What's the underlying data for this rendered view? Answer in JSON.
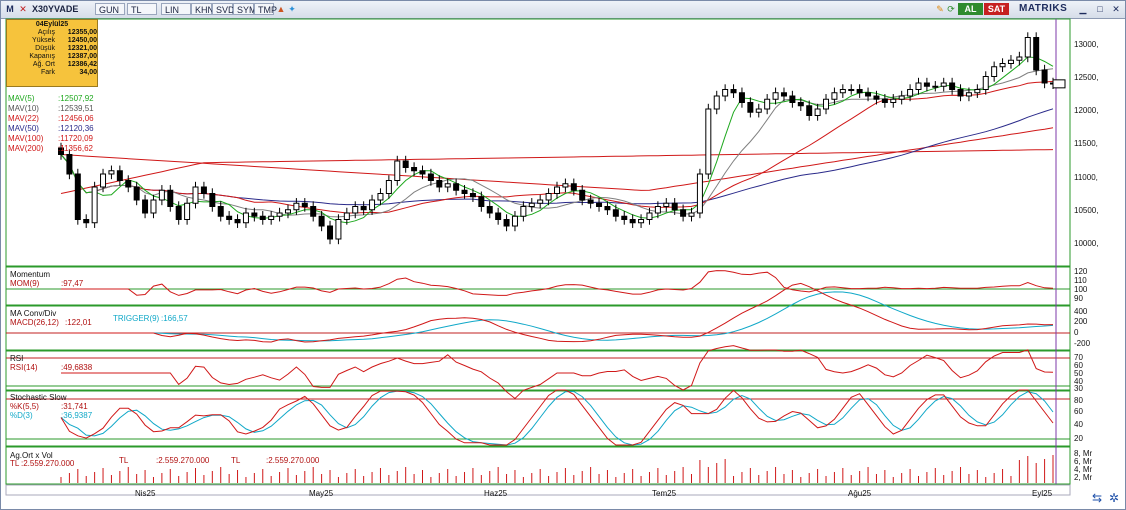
{
  "window": {
    "symbol": "X30YVADE",
    "toolbar": [
      "GUN",
      "TL",
      "LIN",
      "KHN",
      "SVD",
      "SYM",
      "TMP"
    ],
    "buy_label": "AL",
    "sell_label": "SAT",
    "brand": "MATRIKS",
    "menu_glyph": "M"
  },
  "info": {
    "date": "04Eylül25",
    "rows": [
      {
        "k": "Açılış",
        "v": "12355,00"
      },
      {
        "k": "Yüksek",
        "v": "12450,00"
      },
      {
        "k": "Düşük",
        "v": "12321,00"
      },
      {
        "k": "Kapanış",
        "v": "12387,00"
      },
      {
        "k": "Ağ. Ort",
        "v": "12386,42"
      },
      {
        "k": "Fark",
        "v": "34,00"
      }
    ]
  },
  "moving_averages": [
    {
      "name": "MAV(5)",
      "value": ":12507,92",
      "color": "#1ea81e"
    },
    {
      "name": "MAV(10)",
      "value": ":12539,51",
      "color": "#808080"
    },
    {
      "name": "MAV(22)",
      "value": ":12456,06",
      "color": "#d01818"
    },
    {
      "name": "MAV(50)",
      "value": ":12120,36",
      "color": "#2a2a8a"
    },
    {
      "name": "MAV(100)",
      "value": ":11720,09",
      "color": "#d01818"
    },
    {
      "name": "MAV(200)",
      "value": ":11356,62",
      "color": "#d01818"
    }
  ],
  "price_axis": [
    "13000,",
    "12500,",
    "12000,",
    "11500,",
    "11000,",
    "10500,",
    "10000,"
  ],
  "panels": {
    "momentum": {
      "title": "Momentum",
      "label": "MOM(9)",
      "value": ":97,47",
      "ticks": [
        "120",
        "110",
        "100",
        "90"
      ]
    },
    "macd": {
      "title": "MA Conv/Div",
      "label": "MACD(26,12)",
      "value": ":122,01",
      "trigger": "TRIGGER(9)",
      "trigger_value": ":166,57",
      "ticks": [
        "400",
        "200",
        "0",
        "-200"
      ]
    },
    "rsi": {
      "title": "RSI",
      "label": "RSI(14)",
      "value": ":49,6838",
      "ticks": [
        "70",
        "60",
        "50",
        "40",
        "30"
      ]
    },
    "stoch": {
      "title": "Stochastic Slow",
      "k_label": "%K(5,5)",
      "k_value": ":31,741",
      "d_label": "%D(3)",
      "d_value": ":36,9387",
      "ticks": [
        "80",
        "60",
        "40",
        "20"
      ]
    },
    "volume": {
      "title": "Ag.Ort x Vol",
      "tl1": "TL",
      "v1": ":2.559.270.000",
      "tl2": "TL",
      "v2": ":2.559.270.000",
      "tl3": "TL",
      "v3": ":2.559.270.000",
      "ticks": [
        "8, Mr",
        "6, Mr",
        "4, Mr",
        "2, Mr"
      ]
    }
  },
  "dates": [
    "Nis25",
    "May25",
    "Haz25",
    "Tem25",
    "Ağu25",
    "Eyl25"
  ],
  "colors": {
    "up": "#ffffff",
    "down": "#000000",
    "grid": "#2b9a2b",
    "accent": "#7d3aa8"
  },
  "chart_data": {
    "type": "candlestick",
    "series_note": "",
    "closes": [
      11300,
      11000,
      10300,
      10250,
      10800,
      11000,
      11050,
      10900,
      10800,
      10600,
      10400,
      10600,
      10750,
      10500,
      10300,
      10550,
      10800,
      10700,
      10500,
      10350,
      10300,
      10250,
      10400,
      10350,
      10300,
      10350,
      10400,
      10450,
      10550,
      10500,
      10350,
      10200,
      10000,
      10300,
      10400,
      10500,
      10450,
      10600,
      10700,
      10900,
      11200,
      11100,
      11050,
      11000,
      10900,
      10800,
      10850,
      10750,
      10700,
      10650,
      10500,
      10400,
      10300,
      10200,
      10350,
      10500,
      10550,
      10600,
      10700,
      10800,
      10850,
      10750,
      10600,
      10550,
      10500,
      10450,
      10350,
      10300,
      10250,
      10300,
      10400,
      10500,
      10550,
      10450,
      10350,
      10400,
      11000,
      12000,
      12200,
      12300,
      12250,
      12100,
      11950,
      12000,
      12150,
      12250,
      12200,
      12100,
      12050,
      11900,
      12000,
      12150,
      12250,
      12300,
      12300,
      12250,
      12200,
      12150,
      12100,
      12150,
      12200,
      12300,
      12400,
      12350,
      12350,
      12400,
      12300,
      12200,
      12250,
      12300,
      12500,
      12650,
      12700,
      12750,
      12800,
      13100,
      12600,
      12400,
      12387
    ]
  }
}
